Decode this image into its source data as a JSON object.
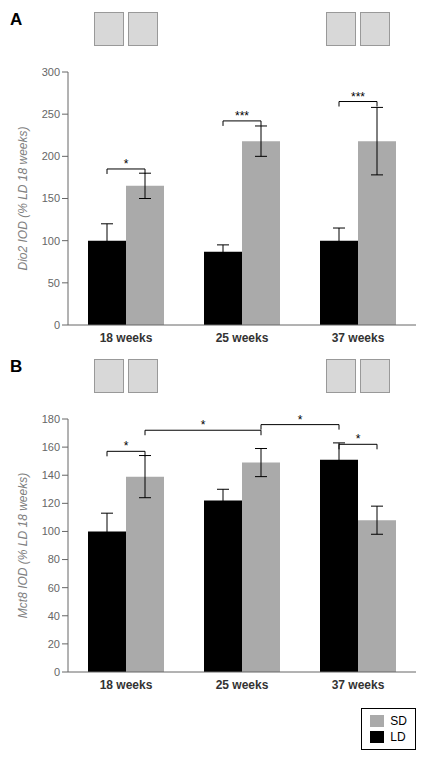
{
  "chart_data": [
    {
      "type": "bar",
      "title": "A",
      "ylabel": "Dio2 IOD (% LD 18 weeks)",
      "categories": [
        "18 weeks",
        "25 weeks",
        "37 weeks"
      ],
      "series": [
        {
          "name": "LD",
          "color": "#000000",
          "values": [
            100,
            87,
            100
          ],
          "errors": [
            20,
            8,
            15
          ]
        },
        {
          "name": "SD",
          "color": "#aaaaaa",
          "values": [
            165,
            218,
            218
          ],
          "errors": [
            15,
            18,
            40
          ]
        }
      ],
      "ylim": [
        0,
        300
      ],
      "yticks": [
        0,
        50,
        100,
        150,
        200,
        250,
        300
      ],
      "annotations": [
        {
          "text": "*",
          "y": 185,
          "from": {
            "category": "18 weeks",
            "series": "LD"
          },
          "to": {
            "category": "18 weeks",
            "series": "SD"
          }
        },
        {
          "text": "***",
          "y": 242,
          "from": {
            "category": "25 weeks",
            "series": "LD"
          },
          "to": {
            "category": "25 weeks",
            "series": "SD"
          }
        },
        {
          "text": "***",
          "y": 265,
          "from": {
            "category": "37 weeks",
            "series": "LD"
          },
          "to": {
            "category": "37 weeks",
            "series": "SD"
          }
        }
      ]
    },
    {
      "type": "bar",
      "title": "B",
      "ylabel": "Mct8 IOD (% LD 18 weeks)",
      "categories": [
        "18 weeks",
        "25 weeks",
        "37 weeks"
      ],
      "series": [
        {
          "name": "LD",
          "color": "#000000",
          "values": [
            100,
            122,
            151
          ],
          "errors": [
            13,
            8,
            12
          ]
        },
        {
          "name": "SD",
          "color": "#aaaaaa",
          "values": [
            139,
            149,
            108
          ],
          "errors": [
            15,
            10,
            10
          ]
        }
      ],
      "ylim": [
        0,
        180
      ],
      "yticks": [
        0,
        20,
        40,
        60,
        80,
        100,
        120,
        140,
        160,
        180
      ],
      "legend": "lower right",
      "annotations": [
        {
          "text": "*",
          "y": 157,
          "from": {
            "category": "18 weeks",
            "series": "LD"
          },
          "to": {
            "category": "18 weeks",
            "series": "SD"
          }
        },
        {
          "text": "*",
          "y": 162,
          "from": {
            "category": "37 weeks",
            "series": "LD"
          },
          "to": {
            "category": "37 weeks",
            "series": "SD"
          }
        },
        {
          "text": "*",
          "y": 172,
          "from": {
            "category": "18 weeks",
            "series": "SD"
          },
          "to": {
            "category": "25 weeks",
            "series": "SD"
          }
        },
        {
          "text": "*",
          "y": 176,
          "from": {
            "category": "25 weeks",
            "series": "SD"
          },
          "to": {
            "category": "37 weeks",
            "series": "LD"
          }
        }
      ]
    }
  ]
}
